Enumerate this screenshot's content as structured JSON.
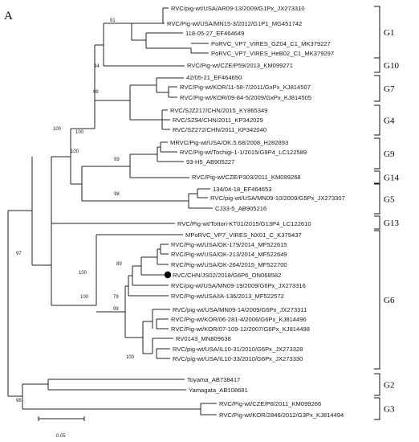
{
  "panel_label": "A",
  "leaves": [
    "RVC/pig-wt/USA/AR09-13/2009/G1Px_JX273310",
    "RVC/Pig-wt/USA/MN15-3/2012/G1P1_MG451742",
    "118-05-27_EF464649",
    "PoRVC_VP7_VIRES_GZ04_C1_MK379227",
    "PoRVC_VP7_VIRES_HeB02_C1_MK379297",
    "RVC/Pig-wt/CZE/P59/2013_KM099271",
    "42/05-21_EF464650",
    "RVC/Pig-wt/KOR/11-58-7/2011/GxPx_KJ814507",
    "RVC/Pig-wt/KOR/09-84-5/2009/GxPx_KJ814505",
    "RVC/SJZ217/CHN/2015_KY865349",
    "RVC/SZ94/CHN/2011_KP342029",
    "RVC/SZ272/CHN/2011_KP342040",
    "MRVC/Pig-wt/USA/OK.5.68/2008_H282893",
    "RVC/Pig-wt/Tochigi-1-1/2015/G9P4_LC122589",
    "93-H5_AB905227",
    "RVC/Pig-wt/CZE/P303/2011_KM099268",
    "134/04-18_EF464653",
    "RVC/pig-wt/USA/MN09-10/2009/G5Px_JX273307",
    "CJ33-5_AB905216",
    "RVC/Pig-wt/Tottori-KT01/2015/G13P4_LC122610",
    "MPoRVC_VP7_VIRES_NX01_C_K379437",
    "RVC/Pig-wt/USA/OK-179/2014_MF522615",
    "RVC/Pig-wt/USA/OK-213/2014_MF522649",
    "RVC/Pig-wt/USA/OK-264/2015_MF522700",
    "RVC/CHN/JS02/2018/G6P6_ON068582",
    "RVC/pig-wt/USA/MN09-19/2009/G6Px_JX273316",
    "RVC/Pig-wt/USA/IA-136/2013_MF522572",
    "RVC/pig-wt/USA/MN09-14/2009/G6Px_JX273311",
    "RVC/Pig-wt/KOR/06-281-4/2006/G6Px_KJ814496",
    "RVC/Pig-wt/KOR/07-109-12/2007/G6Px_KJ814498",
    "RV0143_MN809638",
    "RVC/pig-wt/USA/IL10-31/2010/G6Px_JX273328",
    "RVC/pig-wt/USA/IL10-33/2010/G6Px_JX273330",
    "Toyama_AB738417",
    "Yamagata_AB108681",
    "RVC/Pig-wt/CZE/P8/2011_KM099266",
    "RVC/Pig-wt/KOR/2846/2012/G3Px_KJ814494"
  ],
  "highlighted_leaf": "RVC/CHN/JS02/2018/G6P6_ON068582",
  "bootstrap_labels": [
    "91",
    "94",
    "98",
    "100",
    "100",
    "99",
    "98",
    "100",
    "97",
    "100",
    "89",
    "100",
    "79",
    "99",
    "100",
    "98"
  ],
  "genotype_groups": [
    "G1",
    "G10",
    "G7",
    "G4",
    "G9",
    "G14",
    "G5",
    "G13",
    "G6",
    "G2",
    "G3"
  ],
  "scale_bar_label": "0.05"
}
